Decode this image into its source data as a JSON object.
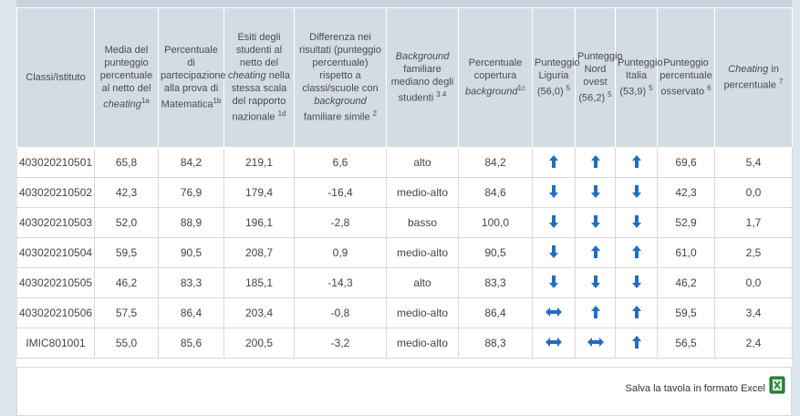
{
  "table": {
    "headers": [
      [
        {
          "text": "Classi/Istituto"
        }
      ],
      [
        {
          "text": "Media del punteggio percentuale al netto del "
        },
        {
          "text": "cheating",
          "style": "italic"
        },
        {
          "text": "1a",
          "style": "sup"
        }
      ],
      [
        {
          "text": "Percentuale di partecipazione alla prova di Matematica"
        },
        {
          "text": "1b",
          "style": "sup"
        }
      ],
      [
        {
          "text": "Esiti degli studenti al netto del "
        },
        {
          "text": "cheating",
          "style": "italic"
        },
        {
          "text": " nella stessa scala del rapporto nazionale "
        },
        {
          "text": "1d",
          "style": "sup"
        }
      ],
      [
        {
          "text": "Differenza nei risultati (punteggio percentuale) rispetto a classi/scuole con "
        },
        {
          "text": "background",
          "style": "italic"
        },
        {
          "text": " familiare simile "
        },
        {
          "text": "2",
          "style": "sup"
        }
      ],
      [
        {
          "text": "Background",
          "style": "italic"
        },
        {
          "text": " familiare mediano degli studenti "
        },
        {
          "text": "3",
          "style": "sup"
        },
        {
          "text": " 4",
          "style": "sup"
        }
      ],
      [
        {
          "text": "Percentuale copertura "
        },
        {
          "text": "background",
          "style": "italic"
        },
        {
          "text": "1c",
          "style": "sup"
        }
      ],
      [
        {
          "text": "Punteggio Liguria (56,0) "
        },
        {
          "text": "5",
          "style": "sup"
        }
      ],
      [
        {
          "text": "Punteggio Nord ovest (56,2) "
        },
        {
          "text": "5",
          "style": "sup"
        }
      ],
      [
        {
          "text": "Punteggio Italia (53,9) "
        },
        {
          "text": "5",
          "style": "sup"
        }
      ],
      [
        {
          "text": "Punteggio percentuale osservato "
        },
        {
          "text": "6",
          "style": "sup"
        }
      ],
      [
        {
          "text": "Cheating",
          "style": "italic"
        },
        {
          "text": " in percentuale "
        },
        {
          "text": "7",
          "style": "sup"
        }
      ]
    ],
    "rows": [
      [
        "403020210501",
        "65,8",
        "84,2",
        "219,1",
        "6,6",
        "alto",
        "84,2",
        "up",
        "up",
        "up",
        "69,6",
        "5,4"
      ],
      [
        "403020210502",
        "42,3",
        "76,9",
        "179,4",
        "-16,4",
        "medio-alto",
        "84,6",
        "down",
        "down",
        "down",
        "42,3",
        "0,0"
      ],
      [
        "403020210503",
        "52,0",
        "88,9",
        "196,1",
        "-2,8",
        "basso",
        "100,0",
        "down",
        "down",
        "down",
        "52,9",
        "1,7"
      ],
      [
        "403020210504",
        "59,5",
        "90,5",
        "208,7",
        "0,9",
        "medio-alto",
        "90,5",
        "down",
        "up",
        "up",
        "61,0",
        "2,5"
      ],
      [
        "403020210505",
        "46,2",
        "83,3",
        "185,1",
        "-14,3",
        "alto",
        "83,3",
        "down",
        "down",
        "down",
        "46,2",
        "0,0"
      ],
      [
        "403020210506",
        "57,5",
        "86,4",
        "203,4",
        "-0,8",
        "medio-alto",
        "86,4",
        "both",
        "up",
        "up",
        "59,5",
        "3,4"
      ],
      [
        "IMIC801001",
        "55,0",
        "85,6",
        "200,5",
        "-3,2",
        "medio-alto",
        "88,3",
        "both",
        "both",
        "up",
        "56,5",
        "2,4"
      ]
    ]
  },
  "footer": {
    "link": "Salva la tavola in formato Excel"
  }
}
